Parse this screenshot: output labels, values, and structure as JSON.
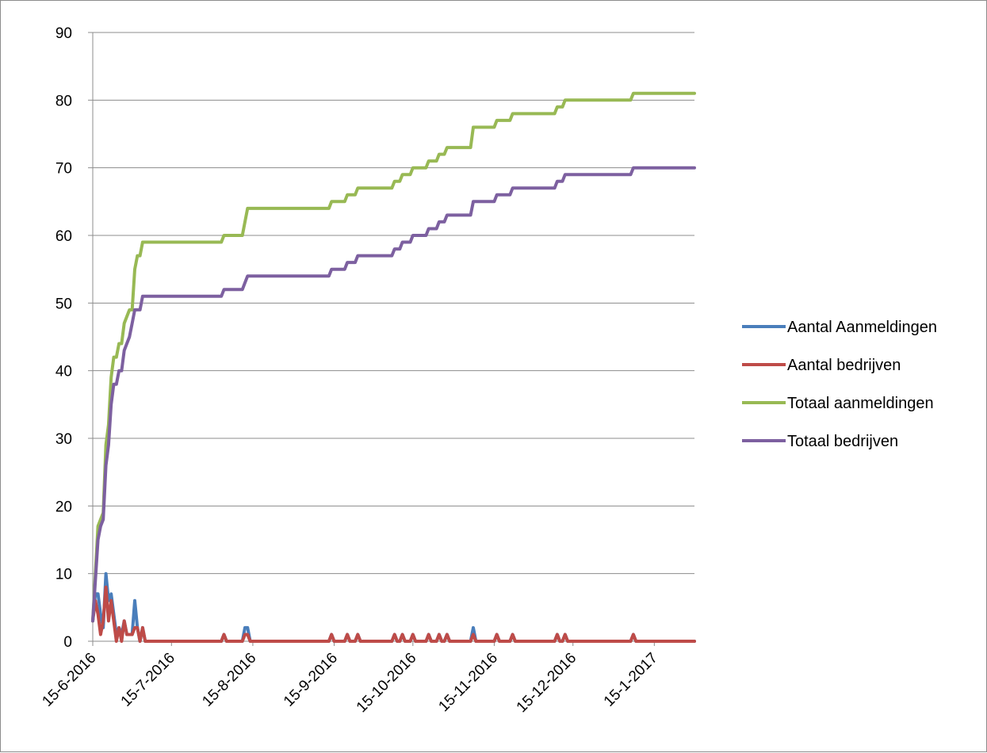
{
  "chart_data": {
    "type": "line",
    "title": "",
    "xlabel": "",
    "ylabel": "",
    "ylim": [
      0,
      90
    ],
    "xlim": [
      "2016-06-15",
      "2017-01-21"
    ],
    "grid": "horizontal",
    "legend_position": "right",
    "y_ticks": [
      "0",
      "10",
      "20",
      "30",
      "40",
      "50",
      "60",
      "70",
      "80",
      "90"
    ],
    "x_ticks": [
      {
        "label": "15-6-2016",
        "date": "2016-06-15"
      },
      {
        "label": "15-7-2016",
        "date": "2016-07-15"
      },
      {
        "label": "15-8-2016",
        "date": "2016-08-15"
      },
      {
        "label": "15-9-2016",
        "date": "2016-09-15"
      },
      {
        "label": "15-10-2016",
        "date": "2016-10-15"
      },
      {
        "label": "15-11-2016",
        "date": "2016-11-15"
      },
      {
        "label": "15-12-2016",
        "date": "2016-12-15"
      },
      {
        "label": "15-1-2017",
        "date": "2017-01-15"
      }
    ],
    "series": [
      {
        "name": "Aantal Aanmeldingen",
        "color": "#4a7ebb",
        "points": [
          [
            "2016-06-15",
            3
          ],
          [
            "2016-06-16",
            7
          ],
          [
            "2016-06-17",
            7
          ],
          [
            "2016-06-18",
            4
          ],
          [
            "2016-06-19",
            2
          ],
          [
            "2016-06-20",
            10
          ],
          [
            "2016-06-21",
            6
          ],
          [
            "2016-06-22",
            7
          ],
          [
            "2016-06-23",
            4
          ],
          [
            "2016-06-24",
            1
          ],
          [
            "2016-06-25",
            2
          ],
          [
            "2016-06-26",
            1
          ],
          [
            "2016-06-27",
            3
          ],
          [
            "2016-06-28",
            1
          ],
          [
            "2016-06-29",
            1
          ],
          [
            "2016-06-30",
            1
          ],
          [
            "2016-07-01",
            6
          ],
          [
            "2016-07-02",
            2
          ],
          [
            "2016-07-03",
            0
          ],
          [
            "2016-07-04",
            2
          ],
          [
            "2016-07-05",
            0
          ],
          [
            "2016-08-03",
            0
          ],
          [
            "2016-08-04",
            1
          ],
          [
            "2016-08-05",
            0
          ],
          [
            "2016-08-11",
            0
          ],
          [
            "2016-08-12",
            2
          ],
          [
            "2016-08-13",
            2
          ],
          [
            "2016-08-14",
            0
          ],
          [
            "2016-09-13",
            0
          ],
          [
            "2016-09-14",
            1
          ],
          [
            "2016-09-15",
            0
          ],
          [
            "2016-09-19",
            0
          ],
          [
            "2016-09-20",
            1
          ],
          [
            "2016-09-21",
            0
          ],
          [
            "2016-09-23",
            0
          ],
          [
            "2016-09-24",
            1
          ],
          [
            "2016-09-25",
            0
          ],
          [
            "2016-10-07",
            0
          ],
          [
            "2016-10-08",
            1
          ],
          [
            "2016-10-09",
            0
          ],
          [
            "2016-10-10",
            0
          ],
          [
            "2016-10-11",
            1
          ],
          [
            "2016-10-12",
            0
          ],
          [
            "2016-10-14",
            0
          ],
          [
            "2016-10-15",
            1
          ],
          [
            "2016-10-16",
            0
          ],
          [
            "2016-10-20",
            0
          ],
          [
            "2016-10-21",
            1
          ],
          [
            "2016-10-22",
            0
          ],
          [
            "2016-10-24",
            0
          ],
          [
            "2016-10-25",
            1
          ],
          [
            "2016-10-26",
            0
          ],
          [
            "2016-10-27",
            0
          ],
          [
            "2016-10-28",
            1
          ],
          [
            "2016-10-29",
            0
          ],
          [
            "2016-11-06",
            0
          ],
          [
            "2016-11-07",
            2
          ],
          [
            "2016-11-08",
            0
          ],
          [
            "2016-11-15",
            0
          ],
          [
            "2016-11-16",
            1
          ],
          [
            "2016-11-17",
            0
          ],
          [
            "2016-11-21",
            0
          ],
          [
            "2016-11-22",
            1
          ],
          [
            "2016-11-23",
            0
          ],
          [
            "2016-12-08",
            0
          ],
          [
            "2016-12-09",
            1
          ],
          [
            "2016-12-10",
            0
          ],
          [
            "2016-12-11",
            0
          ],
          [
            "2016-12-12",
            1
          ],
          [
            "2016-12-13",
            0
          ],
          [
            "2017-01-06",
            0
          ],
          [
            "2017-01-07",
            1
          ],
          [
            "2017-01-08",
            0
          ],
          [
            "2017-01-31",
            0
          ]
        ]
      },
      {
        "name": "Aantal bedrijven",
        "color": "#be4b48",
        "points": [
          [
            "2016-06-15",
            3
          ],
          [
            "2016-06-16",
            6
          ],
          [
            "2016-06-17",
            4
          ],
          [
            "2016-06-18",
            1
          ],
          [
            "2016-06-19",
            3
          ],
          [
            "2016-06-20",
            8
          ],
          [
            "2016-06-21",
            3
          ],
          [
            "2016-06-22",
            6
          ],
          [
            "2016-06-23",
            3
          ],
          [
            "2016-06-24",
            0
          ],
          [
            "2016-06-25",
            2
          ],
          [
            "2016-06-26",
            0
          ],
          [
            "2016-06-27",
            3
          ],
          [
            "2016-06-28",
            1
          ],
          [
            "2016-06-29",
            1
          ],
          [
            "2016-06-30",
            1
          ],
          [
            "2016-07-01",
            2
          ],
          [
            "2016-07-02",
            2
          ],
          [
            "2016-07-03",
            0
          ],
          [
            "2016-07-04",
            2
          ],
          [
            "2016-07-05",
            0
          ],
          [
            "2016-08-03",
            0
          ],
          [
            "2016-08-04",
            1
          ],
          [
            "2016-08-05",
            0
          ],
          [
            "2016-08-11",
            0
          ],
          [
            "2016-08-12",
            1
          ],
          [
            "2016-08-13",
            1
          ],
          [
            "2016-08-14",
            0
          ],
          [
            "2016-09-13",
            0
          ],
          [
            "2016-09-14",
            1
          ],
          [
            "2016-09-15",
            0
          ],
          [
            "2016-09-19",
            0
          ],
          [
            "2016-09-20",
            1
          ],
          [
            "2016-09-21",
            0
          ],
          [
            "2016-09-23",
            0
          ],
          [
            "2016-09-24",
            1
          ],
          [
            "2016-09-25",
            0
          ],
          [
            "2016-10-07",
            0
          ],
          [
            "2016-10-08",
            1
          ],
          [
            "2016-10-09",
            0
          ],
          [
            "2016-10-10",
            0
          ],
          [
            "2016-10-11",
            1
          ],
          [
            "2016-10-12",
            0
          ],
          [
            "2016-10-14",
            0
          ],
          [
            "2016-10-15",
            1
          ],
          [
            "2016-10-16",
            0
          ],
          [
            "2016-10-20",
            0
          ],
          [
            "2016-10-21",
            1
          ],
          [
            "2016-10-22",
            0
          ],
          [
            "2016-10-24",
            0
          ],
          [
            "2016-10-25",
            1
          ],
          [
            "2016-10-26",
            0
          ],
          [
            "2016-10-27",
            0
          ],
          [
            "2016-10-28",
            1
          ],
          [
            "2016-10-29",
            0
          ],
          [
            "2016-11-06",
            0
          ],
          [
            "2016-11-07",
            1
          ],
          [
            "2016-11-08",
            0
          ],
          [
            "2016-11-15",
            0
          ],
          [
            "2016-11-16",
            1
          ],
          [
            "2016-11-17",
            0
          ],
          [
            "2016-11-21",
            0
          ],
          [
            "2016-11-22",
            1
          ],
          [
            "2016-11-23",
            0
          ],
          [
            "2016-12-08",
            0
          ],
          [
            "2016-12-09",
            1
          ],
          [
            "2016-12-10",
            0
          ],
          [
            "2016-12-11",
            0
          ],
          [
            "2016-12-12",
            1
          ],
          [
            "2016-12-13",
            0
          ],
          [
            "2017-01-06",
            0
          ],
          [
            "2017-01-07",
            1
          ],
          [
            "2017-01-08",
            0
          ],
          [
            "2017-01-31",
            0
          ]
        ]
      },
      {
        "name": "Totaal aanmeldingen",
        "color": "#98b954",
        "points": [
          [
            "2016-06-15",
            3
          ],
          [
            "2016-06-16",
            10
          ],
          [
            "2016-06-17",
            17
          ],
          [
            "2016-06-18",
            18
          ],
          [
            "2016-06-19",
            19
          ],
          [
            "2016-06-20",
            29
          ],
          [
            "2016-06-21",
            32
          ],
          [
            "2016-06-22",
            39
          ],
          [
            "2016-06-23",
            42
          ],
          [
            "2016-06-24",
            42
          ],
          [
            "2016-06-25",
            44
          ],
          [
            "2016-06-26",
            44
          ],
          [
            "2016-06-27",
            47
          ],
          [
            "2016-06-28",
            48
          ],
          [
            "2016-06-29",
            49
          ],
          [
            "2016-06-30",
            49
          ],
          [
            "2016-07-01",
            55
          ],
          [
            "2016-07-02",
            57
          ],
          [
            "2016-07-03",
            57
          ],
          [
            "2016-07-04",
            59
          ],
          [
            "2016-08-03",
            59
          ],
          [
            "2016-08-04",
            60
          ],
          [
            "2016-08-11",
            60
          ],
          [
            "2016-08-12",
            62
          ],
          [
            "2016-08-13",
            64
          ],
          [
            "2016-09-13",
            64
          ],
          [
            "2016-09-14",
            65
          ],
          [
            "2016-09-19",
            65
          ],
          [
            "2016-09-20",
            66
          ],
          [
            "2016-09-23",
            66
          ],
          [
            "2016-09-24",
            67
          ],
          [
            "2016-10-07",
            67
          ],
          [
            "2016-10-08",
            68
          ],
          [
            "2016-10-10",
            68
          ],
          [
            "2016-10-11",
            69
          ],
          [
            "2016-10-14",
            69
          ],
          [
            "2016-10-15",
            70
          ],
          [
            "2016-10-20",
            70
          ],
          [
            "2016-10-21",
            71
          ],
          [
            "2016-10-24",
            71
          ],
          [
            "2016-10-25",
            72
          ],
          [
            "2016-10-27",
            72
          ],
          [
            "2016-10-28",
            73
          ],
          [
            "2016-11-06",
            73
          ],
          [
            "2016-11-07",
            76
          ],
          [
            "2016-11-15",
            76
          ],
          [
            "2016-11-16",
            77
          ],
          [
            "2016-11-21",
            77
          ],
          [
            "2016-11-22",
            78
          ],
          [
            "2016-12-08",
            78
          ],
          [
            "2016-12-09",
            79
          ],
          [
            "2016-12-11",
            79
          ],
          [
            "2016-12-12",
            80
          ],
          [
            "2017-01-06",
            80
          ],
          [
            "2017-01-07",
            81
          ],
          [
            "2017-01-31",
            81
          ]
        ]
      },
      {
        "name": "Totaal bedrijven",
        "color": "#7d60a0",
        "points": [
          [
            "2016-06-15",
            3
          ],
          [
            "2016-06-16",
            9
          ],
          [
            "2016-06-17",
            15
          ],
          [
            "2016-06-18",
            17
          ],
          [
            "2016-06-19",
            18
          ],
          [
            "2016-06-20",
            26
          ],
          [
            "2016-06-21",
            29
          ],
          [
            "2016-06-22",
            35
          ],
          [
            "2016-06-23",
            38
          ],
          [
            "2016-06-24",
            38
          ],
          [
            "2016-06-25",
            40
          ],
          [
            "2016-06-26",
            40
          ],
          [
            "2016-06-27",
            43
          ],
          [
            "2016-06-28",
            44
          ],
          [
            "2016-06-29",
            45
          ],
          [
            "2016-06-30",
            47
          ],
          [
            "2016-07-01",
            49
          ],
          [
            "2016-07-02",
            49
          ],
          [
            "2016-07-03",
            49
          ],
          [
            "2016-07-04",
            51
          ],
          [
            "2016-08-03",
            51
          ],
          [
            "2016-08-04",
            52
          ],
          [
            "2016-08-11",
            52
          ],
          [
            "2016-08-12",
            53
          ],
          [
            "2016-08-13",
            54
          ],
          [
            "2016-09-13",
            54
          ],
          [
            "2016-09-14",
            55
          ],
          [
            "2016-09-19",
            55
          ],
          [
            "2016-09-20",
            56
          ],
          [
            "2016-09-23",
            56
          ],
          [
            "2016-09-24",
            57
          ],
          [
            "2016-10-07",
            57
          ],
          [
            "2016-10-08",
            58
          ],
          [
            "2016-10-10",
            58
          ],
          [
            "2016-10-11",
            59
          ],
          [
            "2016-10-14",
            59
          ],
          [
            "2016-10-15",
            60
          ],
          [
            "2016-10-20",
            60
          ],
          [
            "2016-10-21",
            61
          ],
          [
            "2016-10-24",
            61
          ],
          [
            "2016-10-25",
            62
          ],
          [
            "2016-10-27",
            62
          ],
          [
            "2016-10-28",
            63
          ],
          [
            "2016-11-06",
            63
          ],
          [
            "2016-11-07",
            65
          ],
          [
            "2016-11-15",
            65
          ],
          [
            "2016-11-16",
            66
          ],
          [
            "2016-11-21",
            66
          ],
          [
            "2016-11-22",
            67
          ],
          [
            "2016-12-08",
            67
          ],
          [
            "2016-12-09",
            68
          ],
          [
            "2016-12-11",
            68
          ],
          [
            "2016-12-12",
            69
          ],
          [
            "2017-01-06",
            69
          ],
          [
            "2017-01-07",
            70
          ],
          [
            "2017-01-31",
            70
          ]
        ]
      }
    ]
  }
}
